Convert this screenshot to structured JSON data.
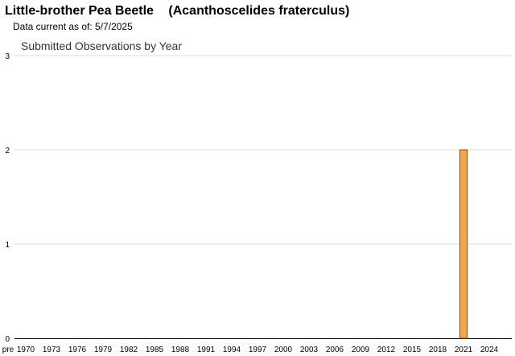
{
  "header": {
    "common_name": "Little-brother Pea Beetle",
    "scientific_name": "(Acanthoscelides fraterculus)",
    "data_current": "Data current as of: 5/7/2025"
  },
  "chart_data": {
    "type": "bar",
    "title": "Submitted Observations by Year",
    "xlabel": "",
    "ylabel": "",
    "ylim": [
      0,
      3
    ],
    "yticks": [
      0,
      1,
      2,
      3
    ],
    "grid": true,
    "x_tick_labels": [
      "pre",
      "1970",
      "1973",
      "1976",
      "1979",
      "1982",
      "1985",
      "1988",
      "1991",
      "1994",
      "1997",
      "2000",
      "2003",
      "2006",
      "2009",
      "2012",
      "2015",
      "2018",
      "2021",
      "2024"
    ],
    "categories": [
      "pre",
      "1970",
      "1971",
      "1972",
      "1973",
      "1974",
      "1975",
      "1976",
      "1977",
      "1978",
      "1979",
      "1980",
      "1981",
      "1982",
      "1983",
      "1984",
      "1985",
      "1986",
      "1987",
      "1988",
      "1989",
      "1990",
      "1991",
      "1992",
      "1993",
      "1994",
      "1995",
      "1996",
      "1997",
      "1998",
      "1999",
      "2000",
      "2001",
      "2002",
      "2003",
      "2004",
      "2005",
      "2006",
      "2007",
      "2008",
      "2009",
      "2010",
      "2011",
      "2012",
      "2013",
      "2014",
      "2015",
      "2016",
      "2017",
      "2018",
      "2019",
      "2020",
      "2021",
      "2022",
      "2023",
      "2024",
      "2025"
    ],
    "values": [
      0,
      0,
      0,
      0,
      0,
      0,
      0,
      0,
      0,
      0,
      0,
      0,
      0,
      0,
      0,
      0,
      0,
      0,
      0,
      0,
      0,
      0,
      0,
      0,
      0,
      0,
      0,
      0,
      0,
      0,
      0,
      0,
      0,
      0,
      0,
      0,
      0,
      0,
      0,
      0,
      0,
      0,
      0,
      0,
      0,
      0,
      0,
      0,
      0,
      0,
      0,
      0,
      2,
      0,
      0,
      0,
      0
    ],
    "colors": {
      "bar_fill": "#f5a54a",
      "bar_stroke": "#8a4e10",
      "grid": "#dddddd",
      "axis": "#000000"
    }
  }
}
